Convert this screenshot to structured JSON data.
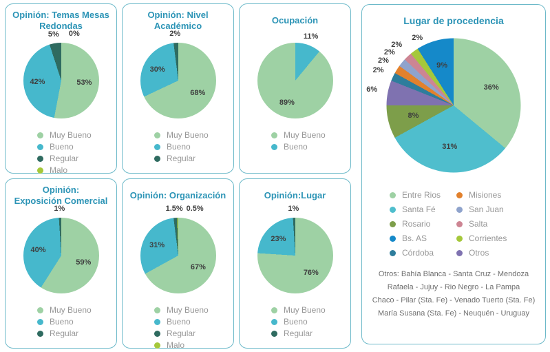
{
  "ui": {
    "background_color": "#ffffff",
    "card_border_color": "#6cb9c9",
    "title_color": "#2c94b6",
    "percent_label_color": "#3e3e3e",
    "legend_text_color": "#979797",
    "note_text_color": "#6e6e6e"
  },
  "chart_data": [
    {
      "type": "pie",
      "title": "Opinión: Temas Mesas\nRedondas",
      "slices": [
        {
          "name": "Muy Bueno",
          "value": 53,
          "label": "53%",
          "color": "#9ed1a4"
        },
        {
          "name": "Bueno",
          "value": 42,
          "label": "42%",
          "color": "#46b8cc"
        },
        {
          "name": "Regular",
          "value": 5,
          "label": "5%",
          "color": "#2f6b60",
          "label_outside": true
        },
        {
          "name": "Malo",
          "value": 0,
          "label": "0%",
          "color": "#a5c83b",
          "label_outside": true
        }
      ]
    },
    {
      "type": "pie",
      "title": "Opinión: Nivel\nAcadémico",
      "slices": [
        {
          "name": "Muy Bueno",
          "value": 68,
          "label": "68%",
          "color": "#9ed1a4"
        },
        {
          "name": "Bueno",
          "value": 30,
          "label": "30%",
          "color": "#46b8cc"
        },
        {
          "name": "Regular",
          "value": 2,
          "label": "2%",
          "color": "#2f6b60",
          "label_outside": true
        }
      ]
    },
    {
      "type": "pie",
      "title": "Ocupación",
      "slices": [
        {
          "name": "Bueno",
          "value": 11,
          "label": "11%",
          "color": "#46b8cc",
          "label_outside": true,
          "legend_order": 2
        },
        {
          "name": "Muy Bueno",
          "value": 89,
          "label": "89%",
          "color": "#9ed1a4",
          "legend_order": 1
        }
      ],
      "legend": [
        {
          "label": "Muy Bueno",
          "color": "#9ed1a4"
        },
        {
          "label": "Bueno",
          "color": "#46b8cc"
        }
      ]
    },
    {
      "type": "pie",
      "title": "Opinión:\nExposición Comercial",
      "slices": [
        {
          "name": "Muy Bueno",
          "value": 59,
          "label": "59%",
          "color": "#9ed1a4"
        },
        {
          "name": "Bueno",
          "value": 40,
          "label": "40%",
          "color": "#46b8cc"
        },
        {
          "name": "Regular",
          "value": 1,
          "label": "1%",
          "color": "#2f6b60",
          "label_outside": true
        }
      ]
    },
    {
      "type": "pie",
      "title": "Opinión: Organización",
      "slices": [
        {
          "name": "Muy Bueno",
          "value": 67,
          "label": "67%",
          "color": "#9ed1a4"
        },
        {
          "name": "Bueno",
          "value": 31,
          "label": "31%",
          "color": "#46b8cc"
        },
        {
          "name": "Regular",
          "value": 1.5,
          "label": "1.5%",
          "color": "#2f6b60",
          "label_outside": true
        },
        {
          "name": "Malo",
          "value": 0.5,
          "label": "0.5%",
          "color": "#a5c83b",
          "label_outside": true
        }
      ]
    },
    {
      "type": "pie",
      "title": "Opinión:Lugar",
      "slices": [
        {
          "name": "Muy Bueno",
          "value": 76,
          "label": "76%",
          "color": "#9ed1a4"
        },
        {
          "name": "Bueno",
          "value": 23,
          "label": "23%",
          "color": "#46b8cc"
        },
        {
          "name": "Regular",
          "value": 1,
          "label": "1%",
          "color": "#2f6b60",
          "label_outside": true
        }
      ]
    },
    {
      "type": "pie",
      "title": "Lugar de procedencia",
      "slices": [
        {
          "name": "Entre Rios",
          "value": 36,
          "label": "36%",
          "color": "#9ed1a4"
        },
        {
          "name": "Santa Fé",
          "value": 31,
          "label": "31%",
          "color": "#4fbecd"
        },
        {
          "name": "Rosario",
          "value": 8,
          "label": "8%",
          "color": "#7d9e4a"
        },
        {
          "name": "Otros",
          "value": 6,
          "label": "6%",
          "color": "#7f72b0",
          "label_outside": true
        },
        {
          "name": "Córdoba",
          "value": 2,
          "label": "2%",
          "color": "#2e7d9c",
          "label_outside": true
        },
        {
          "name": "Misiones",
          "value": 2,
          "label": "2%",
          "color": "#e2812d",
          "label_outside": true
        },
        {
          "name": "San Juan",
          "value": 2,
          "label": "2%",
          "color": "#8fa3cc",
          "label_outside": true
        },
        {
          "name": "Salta",
          "value": 2,
          "label": "2%",
          "color": "#cd8593",
          "label_outside": true
        },
        {
          "name": "Corrientes",
          "value": 2,
          "label": "2%",
          "color": "#a5c83b",
          "label_outside": true
        },
        {
          "name": "Bs. AS",
          "value": 9,
          "label": "9%",
          "color": "#1589c9"
        }
      ],
      "legend_columns": [
        [
          {
            "label": "Entre Rios",
            "color": "#9ed1a4"
          },
          {
            "label": "Santa Fé",
            "color": "#4fbecd"
          },
          {
            "label": "Rosario",
            "color": "#7d9e4a"
          },
          {
            "label": "Bs. AS",
            "color": "#1589c9"
          },
          {
            "label": "Córdoba",
            "color": "#2e7d9c"
          }
        ],
        [
          {
            "label": "Misiones",
            "color": "#e2812d"
          },
          {
            "label": "San Juan",
            "color": "#8fa3cc"
          },
          {
            "label": "Salta",
            "color": "#cd8593"
          },
          {
            "label": "Corrientes",
            "color": "#a5c83b"
          },
          {
            "label": "Otros",
            "color": "#7f72b0"
          }
        ]
      ],
      "note_lines": [
        "Otros: Bahía Blanca - Santa Cruz - Mendoza",
        "Rafaela - Jujuy - Rio Negro - La Pampa",
        "Chaco - Pilar (Sta. Fe) - Venado Tuerto (Sta. Fe)",
        "María Susana (Sta. Fe) - Neuquén - Uruguay"
      ]
    }
  ]
}
